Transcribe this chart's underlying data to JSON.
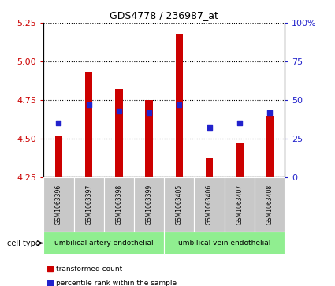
{
  "title": "GDS4778 / 236987_at",
  "samples": [
    "GSM1063396",
    "GSM1063397",
    "GSM1063398",
    "GSM1063399",
    "GSM1063405",
    "GSM1063406",
    "GSM1063407",
    "GSM1063408"
  ],
  "transformed_count": [
    4.52,
    4.93,
    4.82,
    4.75,
    5.18,
    4.38,
    4.47,
    4.65
  ],
  "percentile_rank": [
    0.35,
    0.47,
    0.43,
    0.42,
    0.47,
    0.32,
    0.35,
    0.42
  ],
  "bar_color": "#cc0000",
  "dot_color": "#2222cc",
  "ymin": 4.25,
  "ymax": 5.25,
  "yticks": [
    4.25,
    4.5,
    4.75,
    5.0,
    5.25
  ],
  "right_yticks": [
    0,
    25,
    50,
    75,
    100
  ],
  "cell_type_labels": [
    "umbilical artery endothelial",
    "umbilical vein endothelial"
  ],
  "cell_type_groups": [
    4,
    4
  ],
  "cell_type_color": "#90ee90",
  "sample_box_color": "#c8c8c8",
  "cell_type_label": "cell type",
  "legend_red": "transformed count",
  "legend_blue": "percentile rank within the sample",
  "label_color_red": "#cc0000",
  "label_color_blue": "#2222cc"
}
